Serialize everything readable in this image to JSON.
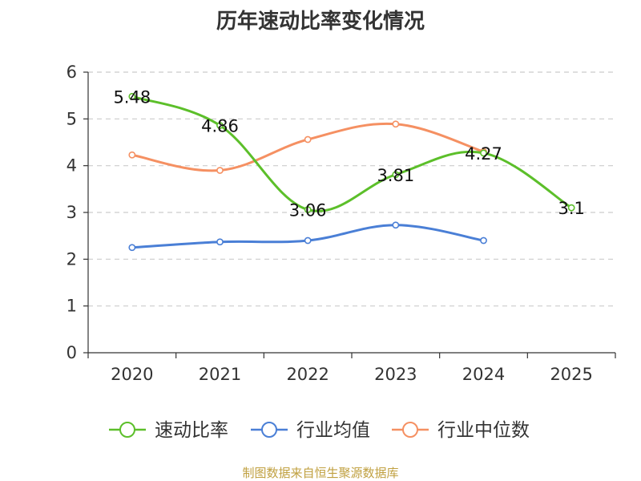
{
  "chart_data": {
    "type": "line",
    "title": "历年速动比率变化情况",
    "categories": [
      "2020",
      "2021",
      "2022",
      "2023",
      "2024",
      "2025"
    ],
    "ylim": [
      0,
      6
    ],
    "yticks": [
      0,
      1,
      2,
      3,
      4,
      5,
      6
    ],
    "grid": true,
    "legend_position": "bottom",
    "series": [
      {
        "name": "速动比率",
        "color": "#5cbf2a",
        "values": [
          5.48,
          4.86,
          3.06,
          3.81,
          4.27,
          3.1
        ],
        "labels": [
          "5.48",
          "4.86",
          "3.06",
          "3.81",
          "4.27",
          "3.1"
        ]
      },
      {
        "name": "行业均值",
        "color": "#4a7fd6",
        "values": [
          2.25,
          2.37,
          2.4,
          2.73,
          2.4,
          null
        ]
      },
      {
        "name": "行业中位数",
        "color": "#f59062",
        "values": [
          4.23,
          3.9,
          4.56,
          4.89,
          4.3,
          null
        ]
      }
    ]
  },
  "source_text": "制图数据来自恒生聚源数据库"
}
